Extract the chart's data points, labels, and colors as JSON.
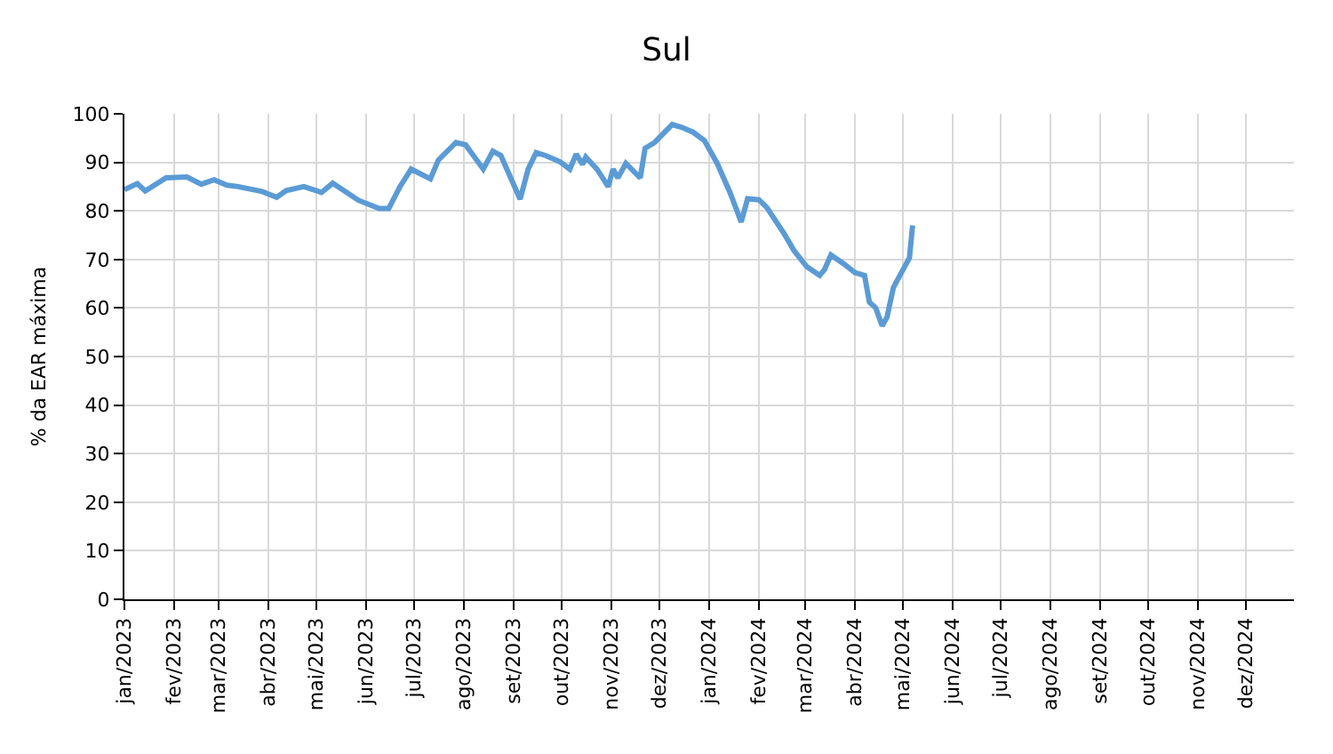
{
  "chart_data": {
    "type": "line",
    "title": "Sul",
    "ylabel": "% da EAR máxima",
    "x": [
      "2023-01-01",
      "2023-01-09",
      "2023-01-14",
      "2023-01-27",
      "2023-02-09",
      "2023-02-18",
      "2023-02-26",
      "2023-03-06",
      "2023-03-13",
      "2023-03-28",
      "2023-04-06",
      "2023-04-12",
      "2023-04-23",
      "2023-05-04",
      "2023-05-11",
      "2023-05-27",
      "2023-06-09",
      "2023-06-15",
      "2023-06-22",
      "2023-06-29",
      "2023-07-11",
      "2023-07-16",
      "2023-07-27",
      "2023-08-02",
      "2023-08-13",
      "2023-08-19",
      "2023-08-24",
      "2023-09-05",
      "2023-09-10",
      "2023-09-15",
      "2023-09-21",
      "2023-09-30",
      "2023-10-06",
      "2023-10-10",
      "2023-10-14",
      "2023-10-16",
      "2023-10-23",
      "2023-10-30",
      "2023-11-02",
      "2023-11-05",
      "2023-11-10",
      "2023-11-19",
      "2023-11-22",
      "2023-11-28",
      "2023-12-09",
      "2023-12-15",
      "2023-12-22",
      "2023-12-29",
      "2024-01-06",
      "2024-01-14",
      "2024-01-21",
      "2024-01-25",
      "2024-02-01",
      "2024-02-06",
      "2024-02-17",
      "2024-02-23",
      "2024-03-02",
      "2024-03-10",
      "2024-03-13",
      "2024-03-17",
      "2024-03-25",
      "2024-04-01",
      "2024-04-07",
      "2024-04-10",
      "2024-04-14",
      "2024-04-18",
      "2024-04-21",
      "2024-04-25",
      "2024-04-30",
      "2024-05-05",
      "2024-05-07"
    ],
    "series": [
      {
        "color": "#5b9bd5",
        "values": [
          84.4,
          85.6,
          84.1,
          86.8,
          87,
          85.5,
          86.4,
          85.3,
          85,
          84,
          82.8,
          84.2,
          85,
          83.8,
          85.7,
          82.2,
          80.5,
          80.5,
          85,
          88.6,
          86.6,
          90.5,
          94.1,
          93.6,
          88.6,
          92.3,
          91.4,
          82.4,
          88.6,
          92,
          91.4,
          90.1,
          88.6,
          91.7,
          89.6,
          91.1,
          88.6,
          85,
          88.6,
          86.8,
          89.8,
          86.8,
          92.9,
          94.1,
          97.8,
          97.2,
          96.2,
          94.5,
          89.8,
          83.8,
          77.7,
          82.5,
          82.3,
          80.7,
          75.2,
          71.8,
          68.5,
          66.7,
          67.9,
          70.9,
          69.1,
          67.3,
          66.7,
          61.2,
          60,
          56.3,
          58.1,
          64.2,
          67.3,
          70.3,
          77
        ]
      }
    ],
    "xlim": [
      "2023-01-01",
      "2024-12-31"
    ],
    "xticks": [
      {
        "value": "2023-01-01",
        "label": "jan/2023"
      },
      {
        "value": "2023-02-01",
        "label": "fev/2023"
      },
      {
        "value": "2023-03-01",
        "label": "mar/2023"
      },
      {
        "value": "2023-04-01",
        "label": "abr/2023"
      },
      {
        "value": "2023-05-01",
        "label": "mai/2023"
      },
      {
        "value": "2023-06-01",
        "label": "jun/2023"
      },
      {
        "value": "2023-07-01",
        "label": "jul/2023"
      },
      {
        "value": "2023-08-01",
        "label": "ago/2023"
      },
      {
        "value": "2023-09-01",
        "label": "set/2023"
      },
      {
        "value": "2023-10-01",
        "label": "out/2023"
      },
      {
        "value": "2023-11-01",
        "label": "nov/2023"
      },
      {
        "value": "2023-12-01",
        "label": "dez/2023"
      },
      {
        "value": "2024-01-01",
        "label": "jan/2024"
      },
      {
        "value": "2024-02-01",
        "label": "fev/2024"
      },
      {
        "value": "2024-03-01",
        "label": "mar/2024"
      },
      {
        "value": "2024-04-01",
        "label": "abr/2024"
      },
      {
        "value": "2024-05-01",
        "label": "mai/2024"
      },
      {
        "value": "2024-06-01",
        "label": "jun/2024"
      },
      {
        "value": "2024-07-01",
        "label": "jul/2024"
      },
      {
        "value": "2024-08-01",
        "label": "ago/2024"
      },
      {
        "value": "2024-09-01",
        "label": "set/2024"
      },
      {
        "value": "2024-10-01",
        "label": "out/2024"
      },
      {
        "value": "2024-11-01",
        "label": "nov/2024"
      },
      {
        "value": "2024-12-01",
        "label": "dez/2024"
      }
    ],
    "ylim": [
      0,
      100
    ],
    "yticks": [
      0,
      10,
      20,
      30,
      40,
      50,
      60,
      70,
      80,
      90,
      100
    ],
    "grid": true,
    "marker": "none",
    "line_style": "solid"
  }
}
